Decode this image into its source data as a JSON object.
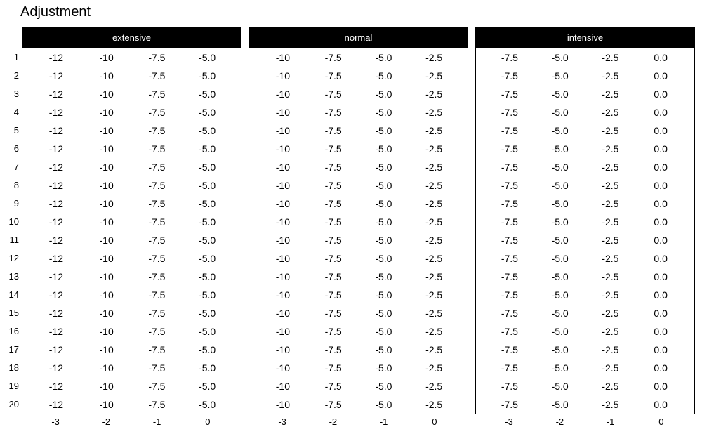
{
  "title": "Adjustment",
  "colors": {
    "background": "#ffffff",
    "header_bg": "#000000",
    "header_text": "#ffffff",
    "text": "#000000",
    "border": "#000000"
  },
  "row_numbers": [
    "1",
    "2",
    "3",
    "4",
    "5",
    "6",
    "7",
    "8",
    "9",
    "10",
    "11",
    "12",
    "13",
    "14",
    "15",
    "16",
    "17",
    "18",
    "19",
    "20"
  ],
  "x_ticks": [
    "-3",
    "-2",
    "-1",
    "0"
  ],
  "panels": [
    {
      "label": "extensive",
      "row_values": [
        "-12",
        "-10",
        "-7.5",
        "-5.0"
      ]
    },
    {
      "label": "normal",
      "row_values": [
        "-10",
        "-7.5",
        "-5.0",
        "-2.5"
      ]
    },
    {
      "label": "intensive",
      "row_values": [
        "-7.5",
        "-5.0",
        "-2.5",
        "0.0"
      ]
    }
  ],
  "chart_data": {
    "type": "table",
    "title": "Adjustment",
    "facets": [
      "extensive",
      "normal",
      "intensive"
    ],
    "n_rows": 20,
    "row_labels": [
      1,
      2,
      3,
      4,
      5,
      6,
      7,
      8,
      9,
      10,
      11,
      12,
      13,
      14,
      15,
      16,
      17,
      18,
      19,
      20
    ],
    "x_tick_labels": [
      -3,
      -2,
      -1,
      0
    ],
    "cell_values_per_row": {
      "extensive": [
        -12,
        -10,
        -7.5,
        -5.0
      ],
      "normal": [
        -10,
        -7.5,
        -5.0,
        -2.5
      ],
      "intensive": [
        -7.5,
        -5.0,
        -2.5,
        0.0
      ]
    },
    "identical_rows": true,
    "layout": {
      "legend": "none",
      "grid": false,
      "facet_header_style": "black strip with white centered label",
      "row_index_position": "left of first facet only",
      "x_ticks_position": "below each facet"
    }
  }
}
